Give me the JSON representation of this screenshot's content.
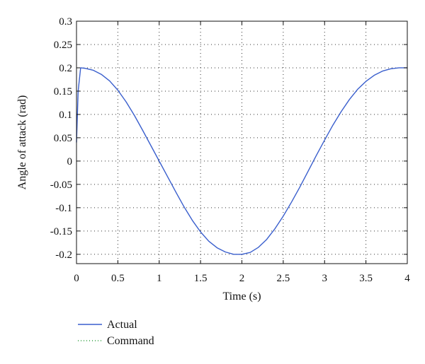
{
  "chart_data": {
    "type": "line",
    "title": "",
    "xlabel": "Time (s)",
    "ylabel": "Angle of attack (rad)",
    "xlim": [
      0,
      4
    ],
    "ylim": [
      -0.22,
      0.3
    ],
    "x_ticks": [
      0,
      0.5,
      1,
      1.5,
      2,
      2.5,
      3,
      3.5,
      4
    ],
    "x_tick_labels": [
      "0",
      "0.5",
      "1",
      "1.5",
      "2",
      "2.5",
      "3",
      "3.5",
      "4"
    ],
    "y_ticks": [
      -0.2,
      -0.15,
      -0.1,
      -0.05,
      0,
      0.05,
      0.1,
      0.15,
      0.2,
      0.25,
      0.3
    ],
    "y_tick_labels": [
      "-0.2",
      "-0.15",
      "-0.1",
      "-0.05",
      "0",
      "0.05",
      "0.1",
      "0.15",
      "0.2",
      "0.25",
      "0.3"
    ],
    "grid": true,
    "legend_position": "below",
    "series": [
      {
        "name": "Actual",
        "color": "#3a5fcd",
        "style": "solid",
        "x": [
          0,
          0.02,
          0.05,
          0.1,
          0.2,
          0.3,
          0.4,
          0.5,
          0.6,
          0.7,
          0.8,
          0.9,
          1.0,
          1.1,
          1.2,
          1.3,
          1.4,
          1.5,
          1.6,
          1.7,
          1.8,
          1.9,
          2.0,
          2.1,
          2.2,
          2.3,
          2.4,
          2.5,
          2.6,
          2.7,
          2.8,
          2.9,
          3.0,
          3.1,
          3.2,
          3.3,
          3.4,
          3.5,
          3.6,
          3.7,
          3.8,
          3.9,
          4.0
        ],
        "y": [
          0.04,
          0.15,
          0.2,
          0.199,
          0.195,
          0.186,
          0.172,
          0.152,
          0.127,
          0.098,
          0.066,
          0.033,
          0.0,
          -0.033,
          -0.066,
          -0.098,
          -0.127,
          -0.152,
          -0.172,
          -0.186,
          -0.195,
          -0.2,
          -0.2,
          -0.196,
          -0.185,
          -0.168,
          -0.145,
          -0.118,
          -0.088,
          -0.056,
          -0.022,
          0.012,
          0.045,
          0.077,
          0.106,
          0.132,
          0.154,
          0.171,
          0.184,
          0.193,
          0.198,
          0.2,
          0.2
        ]
      },
      {
        "name": "Command",
        "color": "#2e9e3e",
        "style": "dotted",
        "x": [],
        "y": []
      }
    ]
  }
}
